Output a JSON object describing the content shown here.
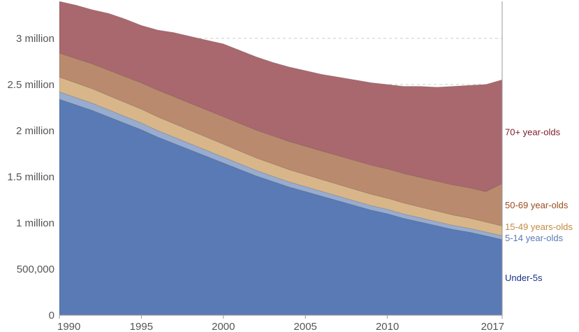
{
  "chart_data": {
    "type": "area",
    "stacked": true,
    "x": [
      1990,
      1991,
      1992,
      1993,
      1994,
      1995,
      1996,
      1997,
      1998,
      1999,
      2000,
      2001,
      2002,
      2003,
      2004,
      2005,
      2006,
      2007,
      2008,
      2009,
      2010,
      2011,
      2012,
      2013,
      2014,
      2015,
      2016,
      2017
    ],
    "xlim": [
      1990,
      2017
    ],
    "ylim": [
      0,
      3400000
    ],
    "x_ticks": [
      {
        "value": 1990,
        "label": "1990"
      },
      {
        "value": 1995,
        "label": "1995"
      },
      {
        "value": 2000,
        "label": "2000"
      },
      {
        "value": 2005,
        "label": "2005"
      },
      {
        "value": 2010,
        "label": "2010"
      },
      {
        "value": 2017,
        "label": "2017"
      }
    ],
    "y_ticks": [
      {
        "value": 0,
        "label": "0"
      },
      {
        "value": 500000,
        "label": "500,000"
      },
      {
        "value": 1000000,
        "label": "1 million"
      },
      {
        "value": 1500000,
        "label": "1.5 million"
      },
      {
        "value": 2000000,
        "label": "2 million"
      },
      {
        "value": 2500000,
        "label": "2.5 million"
      },
      {
        "value": 3000000,
        "label": "3 million"
      }
    ],
    "grid": true,
    "legend": "right-inline",
    "series": [
      {
        "name": "Under-5s",
        "color": "#5a7ab5",
        "label_color": "#1a2f85",
        "values": [
          2340000,
          2280000,
          2220000,
          2150000,
          2080000,
          2010000,
          1930000,
          1860000,
          1790000,
          1720000,
          1650000,
          1580000,
          1510000,
          1450000,
          1390000,
          1340000,
          1290000,
          1240000,
          1190000,
          1140000,
          1100000,
          1050000,
          1010000,
          970000,
          930000,
          900000,
          860000,
          820000
        ]
      },
      {
        "name": "5-14 year-olds",
        "color": "#97acce",
        "label_color": "#5a7ab5",
        "values": [
          80000,
          79000,
          78000,
          76000,
          74000,
          73000,
          71000,
          69000,
          67000,
          65000,
          63000,
          61000,
          59000,
          57000,
          55000,
          54000,
          52000,
          51000,
          50000,
          49000,
          48000,
          47000,
          46000,
          45000,
          44000,
          43000,
          42000,
          41000
        ]
      },
      {
        "name": "15-49 years-olds",
        "color": "#d9b68a",
        "label_color": "#c28b40",
        "values": [
          160000,
          158000,
          156000,
          154000,
          152000,
          150000,
          148000,
          146000,
          144000,
          142000,
          140000,
          138000,
          136000,
          134000,
          132000,
          130000,
          128000,
          126000,
          124000,
          122000,
          120000,
          118000,
          116000,
          114000,
          112000,
          110000,
          108000,
          106000
        ]
      },
      {
        "name": "50-69 year-olds",
        "color": "#b98a6e",
        "label_color": "#9c4a1d",
        "values": [
          260000,
          265000,
          270000,
          275000,
          280000,
          285000,
          290000,
          292000,
          294000,
          296000,
          298000,
          300000,
          302000,
          304000,
          306000,
          308000,
          310000,
          312000,
          314000,
          316000,
          318000,
          320000,
          322000,
          324000,
          326000,
          328000,
          330000,
          460000
        ]
      },
      {
        "name": "70+ year-olds",
        "color": "#a9686e",
        "label_color": "#7d1d2a",
        "values": [
          560000,
          578000,
          586000,
          615000,
          624000,
          622000,
          651000,
          695000,
          725000,
          757000,
          789000,
          791000,
          793000,
          795000,
          807000,
          818000,
          830000,
          851000,
          872000,
          893000,
          914000,
          945000,
          986000,
          1017000,
          1068000,
          1109000,
          1160000,
          1124000
        ]
      }
    ]
  }
}
